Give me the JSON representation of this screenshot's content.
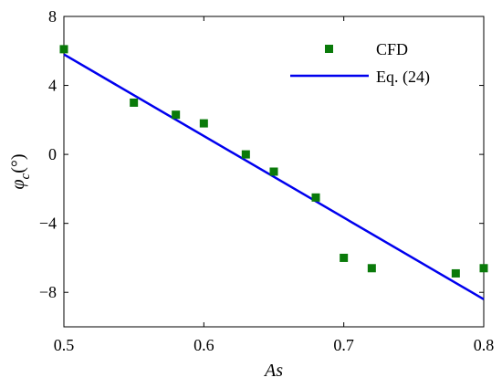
{
  "chart_data": {
    "type": "scatter",
    "xlabel": "As",
    "ylabel_symbol": "φ",
    "ylabel_sub": "c",
    "ylabel_unit": "(°)",
    "xlim": [
      0.5,
      0.8
    ],
    "ylim": [
      -10,
      8
    ],
    "xticks": [
      0.5,
      0.6,
      0.7,
      0.8
    ],
    "xtick_labels": [
      "0.5",
      "0.6",
      "0.7",
      "0.8"
    ],
    "yticks": [
      -8,
      -4,
      0,
      4,
      8
    ],
    "ytick_labels": [
      "−8",
      "−4",
      "0",
      "4",
      "8"
    ],
    "grid": false,
    "legend_position": "top-right",
    "series": [
      {
        "name": "CFD",
        "kind": "scatter",
        "marker": "square",
        "color": "#0a7a0a",
        "x": [
          0.5,
          0.55,
          0.58,
          0.6,
          0.63,
          0.65,
          0.68,
          0.7,
          0.72,
          0.78,
          0.8
        ],
        "y": [
          6.1,
          3.0,
          2.3,
          1.8,
          0.0,
          -1.0,
          -2.5,
          -6.0,
          -6.6,
          -6.9,
          -6.6
        ]
      },
      {
        "name": "Eq. (24)",
        "kind": "line",
        "color": "#0000ee",
        "x": [
          0.5,
          0.8
        ],
        "y": [
          5.8,
          -8.4
        ]
      }
    ]
  }
}
